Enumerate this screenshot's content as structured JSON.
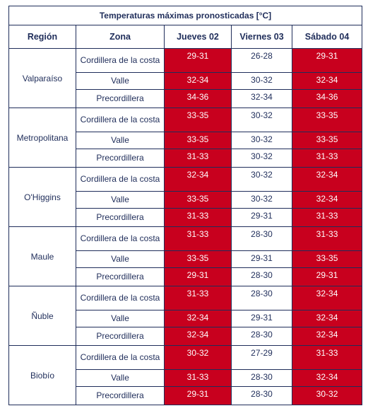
{
  "title": "Temperaturas máximas pronosticadas [°C]",
  "headers": [
    "Región",
    "Zona",
    "Jueves 02",
    "Viernes 03",
    "Sábado 04"
  ],
  "colors": {
    "hot": "#c8001e",
    "text": "#1f2d5a"
  },
  "regions": [
    {
      "name": "Valparaíso",
      "rows": [
        {
          "zona": "Cordillera de la costa",
          "values": [
            "29-31",
            "26-28",
            "29-31"
          ],
          "hot": [
            true,
            false,
            true
          ]
        },
        {
          "zona": "Valle",
          "values": [
            "32-34",
            "30-32",
            "32-34"
          ],
          "hot": [
            true,
            false,
            true
          ]
        },
        {
          "zona": "Precordillera",
          "values": [
            "34-36",
            "32-34",
            "34-36"
          ],
          "hot": [
            true,
            false,
            true
          ]
        }
      ]
    },
    {
      "name": "Metropolitana",
      "rows": [
        {
          "zona": "Cordillera de la costa",
          "values": [
            "33-35",
            "30-32",
            "33-35"
          ],
          "hot": [
            true,
            false,
            true
          ]
        },
        {
          "zona": "Valle",
          "values": [
            "33-35",
            "30-32",
            "33-35"
          ],
          "hot": [
            true,
            false,
            true
          ]
        },
        {
          "zona": "Precordillera",
          "values": [
            "31-33",
            "30-32",
            "31-33"
          ],
          "hot": [
            true,
            false,
            true
          ]
        }
      ]
    },
    {
      "name": "O'Higgins",
      "rows": [
        {
          "zona": "Cordillera de la costa",
          "values": [
            "32-34",
            "30-32",
            "32-34"
          ],
          "hot": [
            true,
            false,
            true
          ]
        },
        {
          "zona": "Valle",
          "values": [
            "33-35",
            "30-32",
            "32-34"
          ],
          "hot": [
            true,
            false,
            true
          ]
        },
        {
          "zona": "Precordillera",
          "values": [
            "31-33",
            "29-31",
            "31-33"
          ],
          "hot": [
            true,
            false,
            true
          ]
        }
      ]
    },
    {
      "name": "Maule",
      "rows": [
        {
          "zona": "Cordillera de la costa",
          "values": [
            "31-33",
            "28-30",
            "31-33"
          ],
          "hot": [
            true,
            false,
            true
          ]
        },
        {
          "zona": "Valle",
          "values": [
            "33-35",
            "29-31",
            "33-35"
          ],
          "hot": [
            true,
            false,
            true
          ]
        },
        {
          "zona": "Precordillera",
          "values": [
            "29-31",
            "28-30",
            "29-31"
          ],
          "hot": [
            true,
            false,
            true
          ]
        }
      ]
    },
    {
      "name": "Ñuble",
      "rows": [
        {
          "zona": "Cordillera de la costa",
          "values": [
            "31-33",
            "28-30",
            "32-34"
          ],
          "hot": [
            true,
            false,
            true
          ]
        },
        {
          "zona": "Valle",
          "values": [
            "32-34",
            "29-31",
            "32-34"
          ],
          "hot": [
            true,
            false,
            true
          ]
        },
        {
          "zona": "Precordillera",
          "values": [
            "32-34",
            "28-30",
            "32-34"
          ],
          "hot": [
            true,
            false,
            true
          ]
        }
      ]
    },
    {
      "name": "Biobío",
      "rows": [
        {
          "zona": "Cordillera de la costa",
          "values": [
            "30-32",
            "27-29",
            "31-33"
          ],
          "hot": [
            true,
            false,
            true
          ]
        },
        {
          "zona": "Valle",
          "values": [
            "31-33",
            "28-30",
            "32-34"
          ],
          "hot": [
            true,
            false,
            true
          ]
        },
        {
          "zona": "Precordillera",
          "values": [
            "29-31",
            "28-30",
            "30-32"
          ],
          "hot": [
            true,
            false,
            true
          ]
        }
      ]
    }
  ]
}
